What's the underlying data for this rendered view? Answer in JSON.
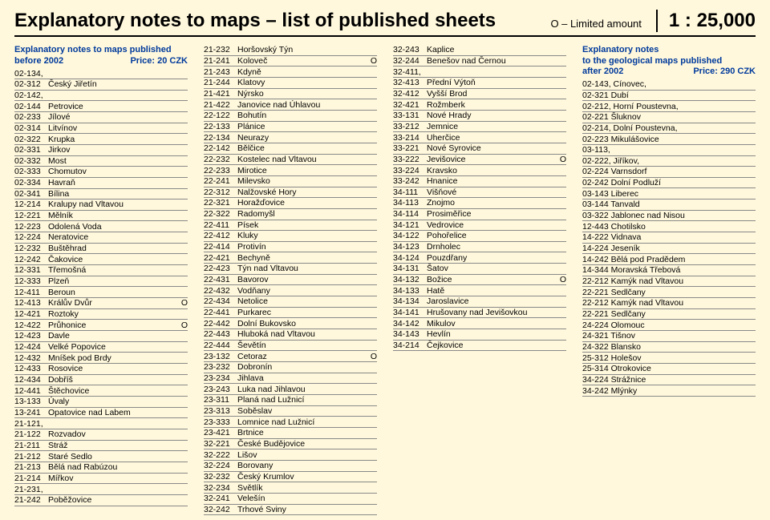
{
  "header": {
    "title": "Explanatory notes to maps – list of published sheets",
    "limited": "O – Limited amount",
    "scale": "1 : 25,000"
  },
  "col1": {
    "heading": "Explanatory notes to maps published",
    "sub_left": "before 2002",
    "sub_right": "Price: 20 CZK",
    "rows": [
      {
        "code": "02-134,",
        "name": "",
        "mark": ""
      },
      {
        "code": "02-312",
        "name": "Český Jiřetín",
        "mark": ""
      },
      {
        "code": "02-142,",
        "name": "",
        "mark": ""
      },
      {
        "code": "02-144",
        "name": "Petrovice",
        "mark": ""
      },
      {
        "code": "02-233",
        "name": "Jílové",
        "mark": ""
      },
      {
        "code": "02-314",
        "name": "Litvínov",
        "mark": ""
      },
      {
        "code": "02-322",
        "name": "Krupka",
        "mark": ""
      },
      {
        "code": "02-331",
        "name": "Jirkov",
        "mark": ""
      },
      {
        "code": "02-332",
        "name": "Most",
        "mark": ""
      },
      {
        "code": "02-333",
        "name": "Chomutov",
        "mark": ""
      },
      {
        "code": "02-334",
        "name": "Havraň",
        "mark": ""
      },
      {
        "code": "02-341",
        "name": "Bílina",
        "mark": ""
      },
      {
        "code": "12-214",
        "name": "Kralupy nad Vltavou",
        "mark": ""
      },
      {
        "code": "12-221",
        "name": "Mělník",
        "mark": ""
      },
      {
        "code": "12-223",
        "name": "Odolená Voda",
        "mark": ""
      },
      {
        "code": "12-224",
        "name": "Neratovice",
        "mark": ""
      },
      {
        "code": "12-232",
        "name": "Buštěhrad",
        "mark": ""
      },
      {
        "code": "12-242",
        "name": "Čakovice",
        "mark": ""
      },
      {
        "code": "12-331",
        "name": "Třemošná",
        "mark": ""
      },
      {
        "code": "12-333",
        "name": "Plzeň",
        "mark": ""
      },
      {
        "code": "12-411",
        "name": "Beroun",
        "mark": ""
      },
      {
        "code": "12-413",
        "name": "Králův Dvůr",
        "mark": "O"
      },
      {
        "code": "12-421",
        "name": "Roztoky",
        "mark": ""
      },
      {
        "code": "12-422",
        "name": "Průhonice",
        "mark": "O"
      },
      {
        "code": "12-423",
        "name": "Davle",
        "mark": ""
      },
      {
        "code": "12-424",
        "name": "Velké Popovice",
        "mark": ""
      },
      {
        "code": "12-432",
        "name": "Mníšek pod Brdy",
        "mark": ""
      },
      {
        "code": "12-433",
        "name": "Rosovice",
        "mark": ""
      },
      {
        "code": "12-434",
        "name": "Dobříš",
        "mark": ""
      },
      {
        "code": "12-441",
        "name": "Štěchovice",
        "mark": ""
      },
      {
        "code": "13-133",
        "name": "Úvaly",
        "mark": ""
      },
      {
        "code": "13-241",
        "name": "Opatovice nad Labem",
        "mark": ""
      },
      {
        "code": "21-121,",
        "name": "",
        "mark": ""
      },
      {
        "code": "21-122",
        "name": "Rozvadov",
        "mark": ""
      },
      {
        "code": "21-211",
        "name": "Stráž",
        "mark": ""
      },
      {
        "code": "21-212",
        "name": "Staré Sedlo",
        "mark": ""
      },
      {
        "code": "21-213",
        "name": "Bělá nad Rabúzou",
        "mark": ""
      },
      {
        "code": "21-214",
        "name": "Mířkov",
        "mark": ""
      },
      {
        "code": "21-231,",
        "name": "",
        "mark": ""
      },
      {
        "code": "21-242",
        "name": "Poběžovice",
        "mark": ""
      }
    ]
  },
  "col2": {
    "rows": [
      {
        "code": "21-232",
        "name": "Horšovský Týn",
        "mark": ""
      },
      {
        "code": "21-241",
        "name": "Koloveč",
        "mark": "O"
      },
      {
        "code": "21-243",
        "name": "Kdyně",
        "mark": ""
      },
      {
        "code": "21-244",
        "name": "Klatovy",
        "mark": ""
      },
      {
        "code": "21-421",
        "name": "Nýrsko",
        "mark": ""
      },
      {
        "code": "21-422",
        "name": "Janovice nad Úhlavou",
        "mark": ""
      },
      {
        "code": "22-122",
        "name": "Bohutín",
        "mark": ""
      },
      {
        "code": "22-133",
        "name": "Plánice",
        "mark": ""
      },
      {
        "code": "22-134",
        "name": "Neurazy",
        "mark": ""
      },
      {
        "code": "22-142",
        "name": "Bělčice",
        "mark": ""
      },
      {
        "code": "22-232",
        "name": "Kostelec nad Vltavou",
        "mark": ""
      },
      {
        "code": "22-233",
        "name": "Mirotice",
        "mark": ""
      },
      {
        "code": "22-241",
        "name": "Milevsko",
        "mark": ""
      },
      {
        "code": "22-312",
        "name": "Nalžovské Hory",
        "mark": ""
      },
      {
        "code": "22-321",
        "name": "Horažďovice",
        "mark": ""
      },
      {
        "code": "22-322",
        "name": "Radomyšl",
        "mark": ""
      },
      {
        "code": "22-411",
        "name": "Písek",
        "mark": ""
      },
      {
        "code": "22-412",
        "name": "Kluky",
        "mark": ""
      },
      {
        "code": "22-414",
        "name": "Protivín",
        "mark": ""
      },
      {
        "code": "22-421",
        "name": "Bechyně",
        "mark": ""
      },
      {
        "code": "22-423",
        "name": "Týn nad Vltavou",
        "mark": ""
      },
      {
        "code": "22-431",
        "name": "Bavorov",
        "mark": ""
      },
      {
        "code": "22-432",
        "name": "Vodňany",
        "mark": ""
      },
      {
        "code": "22-434",
        "name": "Netolice",
        "mark": ""
      },
      {
        "code": "22-441",
        "name": "Purkarec",
        "mark": ""
      },
      {
        "code": "22-442",
        "name": "Dolní Bukovsko",
        "mark": ""
      },
      {
        "code": "22-443",
        "name": "Hluboká nad Vltavou",
        "mark": ""
      },
      {
        "code": "22-444",
        "name": "Ševětín",
        "mark": ""
      },
      {
        "code": "23-132",
        "name": "Cetoraz",
        "mark": "O"
      },
      {
        "code": "23-232",
        "name": "Dobronín",
        "mark": ""
      },
      {
        "code": "23-234",
        "name": "Jihlava",
        "mark": ""
      },
      {
        "code": "23-243",
        "name": "Luka nad Jihlavou",
        "mark": ""
      },
      {
        "code": "23-311",
        "name": "Planá nad Lužnicí",
        "mark": ""
      },
      {
        "code": "23-313",
        "name": "Soběslav",
        "mark": ""
      },
      {
        "code": "23-333",
        "name": "Lomnice nad Lužnicí",
        "mark": ""
      },
      {
        "code": "23-421",
        "name": "Brtnice",
        "mark": ""
      },
      {
        "code": "32-221",
        "name": "České Budějovice",
        "mark": ""
      },
      {
        "code": "32-222",
        "name": "Lišov",
        "mark": ""
      },
      {
        "code": "32-224",
        "name": "Borovany",
        "mark": ""
      },
      {
        "code": "32-232",
        "name": "Český Krumlov",
        "mark": ""
      },
      {
        "code": "32-234",
        "name": "Světlík",
        "mark": ""
      },
      {
        "code": "32-241",
        "name": "Velešín",
        "mark": ""
      },
      {
        "code": "32-242",
        "name": "Trhové Sviny",
        "mark": ""
      }
    ]
  },
  "col3": {
    "rows": [
      {
        "code": "32-243",
        "name": "Kaplice",
        "mark": ""
      },
      {
        "code": "32-244",
        "name": "Benešov nad Černou",
        "mark": ""
      },
      {
        "code": "32-411,",
        "name": "",
        "mark": ""
      },
      {
        "code": "32-413",
        "name": "Přední Výtoň",
        "mark": ""
      },
      {
        "code": "32-412",
        "name": "Vyšší Brod",
        "mark": ""
      },
      {
        "code": "32-421",
        "name": "Rožmberk",
        "mark": ""
      },
      {
        "code": "33-131",
        "name": "Nové Hrady",
        "mark": ""
      },
      {
        "code": "33-212",
        "name": "Jemnice",
        "mark": ""
      },
      {
        "code": "33-214",
        "name": "Uherčice",
        "mark": ""
      },
      {
        "code": "33-221",
        "name": "Nové Syrovice",
        "mark": ""
      },
      {
        "code": "33-222",
        "name": "Jevišovice",
        "mark": "O"
      },
      {
        "code": "33-224",
        "name": "Kravsko",
        "mark": ""
      },
      {
        "code": "33-242",
        "name": "Hnanice",
        "mark": ""
      },
      {
        "code": "34-111",
        "name": "Višňové",
        "mark": ""
      },
      {
        "code": "34-113",
        "name": "Znojmo",
        "mark": ""
      },
      {
        "code": "34-114",
        "name": "Prosiměřice",
        "mark": ""
      },
      {
        "code": "34-121",
        "name": "Vedrovice",
        "mark": ""
      },
      {
        "code": "34-122",
        "name": "Pohořelice",
        "mark": ""
      },
      {
        "code": "34-123",
        "name": "Drnholec",
        "mark": ""
      },
      {
        "code": "34-124",
        "name": "Pouzdřany",
        "mark": ""
      },
      {
        "code": "34-131",
        "name": "Šatov",
        "mark": ""
      },
      {
        "code": "34-132",
        "name": "Božice",
        "mark": "O"
      },
      {
        "code": "34-133",
        "name": "Hatě",
        "mark": ""
      },
      {
        "code": "34-134",
        "name": "Jaroslavice",
        "mark": ""
      },
      {
        "code": "34-141",
        "name": "Hrušovany nad Jevišovkou",
        "mark": ""
      },
      {
        "code": "34-142",
        "name": "Mikulov",
        "mark": ""
      },
      {
        "code": "34-143",
        "name": "Hevlín",
        "mark": ""
      },
      {
        "code": "34-214",
        "name": "Čejkovice",
        "mark": ""
      }
    ]
  },
  "col4": {
    "heading": "Explanatory notes",
    "heading2": "to the geological maps published",
    "sub_left": "after 2002",
    "sub_right": "Price: 290 CZK",
    "rows": [
      {
        "text": "02-143, Cínovec,"
      },
      {
        "text": "02-321  Dubí"
      },
      {
        "text": "02-212, Horní Poustevna,"
      },
      {
        "text": "02-221  Šluknov"
      },
      {
        "text": "02-214, Dolní Poustevna,"
      },
      {
        "text": "02-223  Mikulášovice"
      },
      {
        "text": "03-113,"
      },
      {
        "text": "02-222, Jiříkov,"
      },
      {
        "text": "02-224  Varnsdorf"
      },
      {
        "text": "02-242  Dolní Podluží"
      },
      {
        "text": "03-143  Liberec"
      },
      {
        "text": "03-144  Tanvald"
      },
      {
        "text": "03-322  Jablonec nad Nisou"
      },
      {
        "text": "12-443  Chotilsko"
      },
      {
        "text": "14-222  Vidnava"
      },
      {
        "text": "14-224  Jeseník"
      },
      {
        "text": "14-242  Bělá pod Pradědem"
      },
      {
        "text": "14-344  Moravská Třebová"
      },
      {
        "text": "22-212  Kamýk nad Vltavou"
      },
      {
        "text": "22-221  Sedlčany"
      },
      {
        "text": "22-212  Kamýk nad Vltavou"
      },
      {
        "text": "22-221  Sedlčany"
      },
      {
        "text": "24-224  Olomouc"
      },
      {
        "text": "24-321  Tišnov"
      },
      {
        "text": "24-322  Blansko"
      },
      {
        "text": "25-312  Holešov"
      },
      {
        "text": "25-314  Otrokovice"
      },
      {
        "text": "34-224  Strážnice"
      },
      {
        "text": "34-242  Mlýnky"
      }
    ]
  }
}
